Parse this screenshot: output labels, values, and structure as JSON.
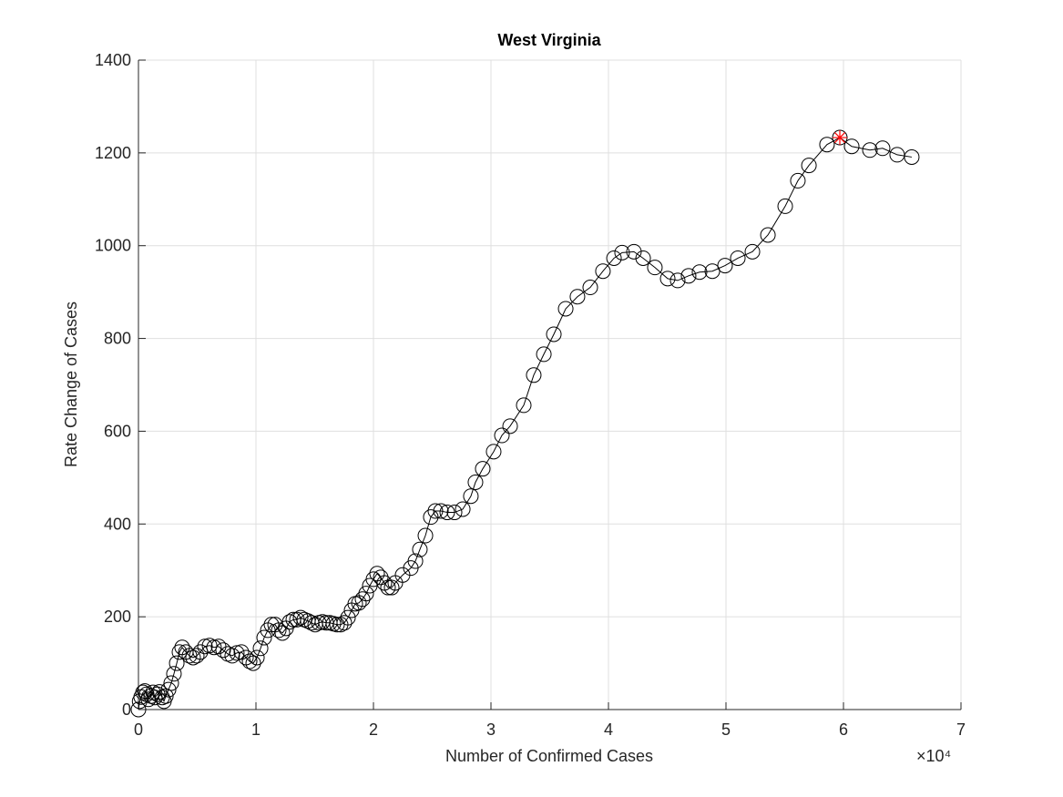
{
  "chart_data": {
    "type": "scatter",
    "title": "West Virginia",
    "x_label": "Number of Confirmed Cases",
    "y_label": "Rate Change of Cases",
    "x_exponent": "×10⁴",
    "xlim": [
      0,
      70000
    ],
    "ylim": [
      0,
      1400
    ],
    "xticks": [
      0,
      {
        "value": 10000,
        "label": "1"
      },
      {
        "value": 20000,
        "label": "2"
      },
      {
        "value": 30000,
        "label": "3"
      },
      {
        "value": 40000,
        "label": "4"
      },
      {
        "value": 50000,
        "label": "5"
      },
      {
        "value": 60000,
        "label": "6"
      },
      {
        "value": 70000,
        "label": "7"
      }
    ],
    "yticks": [
      0,
      200,
      400,
      600,
      800,
      1000,
      1200,
      1400
    ],
    "grid": true,
    "series": [
      {
        "color": "#000000",
        "marker": "circle",
        "line": true,
        "x": [
          0,
          100,
          230,
          390,
          540,
          700,
          850,
          1090,
          1240,
          1400,
          1630,
          1780,
          2020,
          2170,
          2330,
          2560,
          2790,
          3020,
          3260,
          3490,
          3720,
          4030,
          4340,
          4650,
          4960,
          5270,
          5660,
          6050,
          6430,
          6820,
          7210,
          7600,
          7980,
          8370,
          8760,
          9150,
          9460,
          9770,
          10080,
          10390,
          10700,
          11010,
          11320,
          11630,
          11940,
          12250,
          12560,
          12870,
          13180,
          13490,
          13800,
          14110,
          14420,
          14730,
          15040,
          15350,
          15660,
          15970,
          16280,
          16590,
          16900,
          17210,
          17520,
          17830,
          18140,
          18450,
          18760,
          19070,
          19380,
          19690,
          20000,
          20310,
          20620,
          20930,
          21240,
          21550,
          21860,
          22480,
          23180,
          23570,
          23950,
          24420,
          24880,
          25270,
          25740,
          26280,
          26900,
          27600,
          28290,
          28680,
          29300,
          30230,
          30930,
          31630,
          32790,
          33640,
          34500,
          35350,
          36360,
          37360,
          38450,
          39530,
          40470,
          41160,
          42170,
          42950,
          43950,
          45040,
          45890,
          46820,
          47750,
          48840,
          49920,
          51010,
          52250,
          53570,
          55040,
          56120,
          57060,
          58600,
          59690,
          60700,
          62250,
          63330,
          64570,
          65810
        ],
        "values": [
          0,
          18,
          27,
          37,
          40,
          33,
          22,
          29,
          37,
          26,
          33,
          38,
          26,
          18,
          29,
          43,
          57,
          77,
          100,
          124,
          134,
          124,
          116,
          112,
          116,
          124,
          136,
          138,
          134,
          136,
          128,
          120,
          116,
          122,
          124,
          112,
          104,
          100,
          112,
          132,
          155,
          171,
          183,
          183,
          171,
          165,
          175,
          189,
          194,
          194,
          198,
          194,
          191,
          187,
          183,
          187,
          189,
          187,
          187,
          185,
          183,
          183,
          187,
          198,
          214,
          228,
          230,
          238,
          250,
          267,
          281,
          293,
          285,
          273,
          263,
          263,
          273,
          290,
          305,
          320,
          345,
          375,
          415,
          428,
          428,
          425,
          425,
          432,
          460,
          490,
          519,
          556,
          591,
          611,
          656,
          721,
          766,
          809,
          864,
          890,
          910,
          945,
          973,
          985,
          987,
          973,
          953,
          929,
          925,
          935,
          943,
          945,
          957,
          973,
          987,
          1023,
          1085,
          1140,
          1173,
          1218,
          1233,
          1214,
          1206,
          1210,
          1196,
          1191
        ]
      },
      {
        "color": "#ff0000",
        "marker": "star",
        "line": false,
        "x": [
          59690
        ],
        "values": [
          1233
        ]
      }
    ]
  }
}
